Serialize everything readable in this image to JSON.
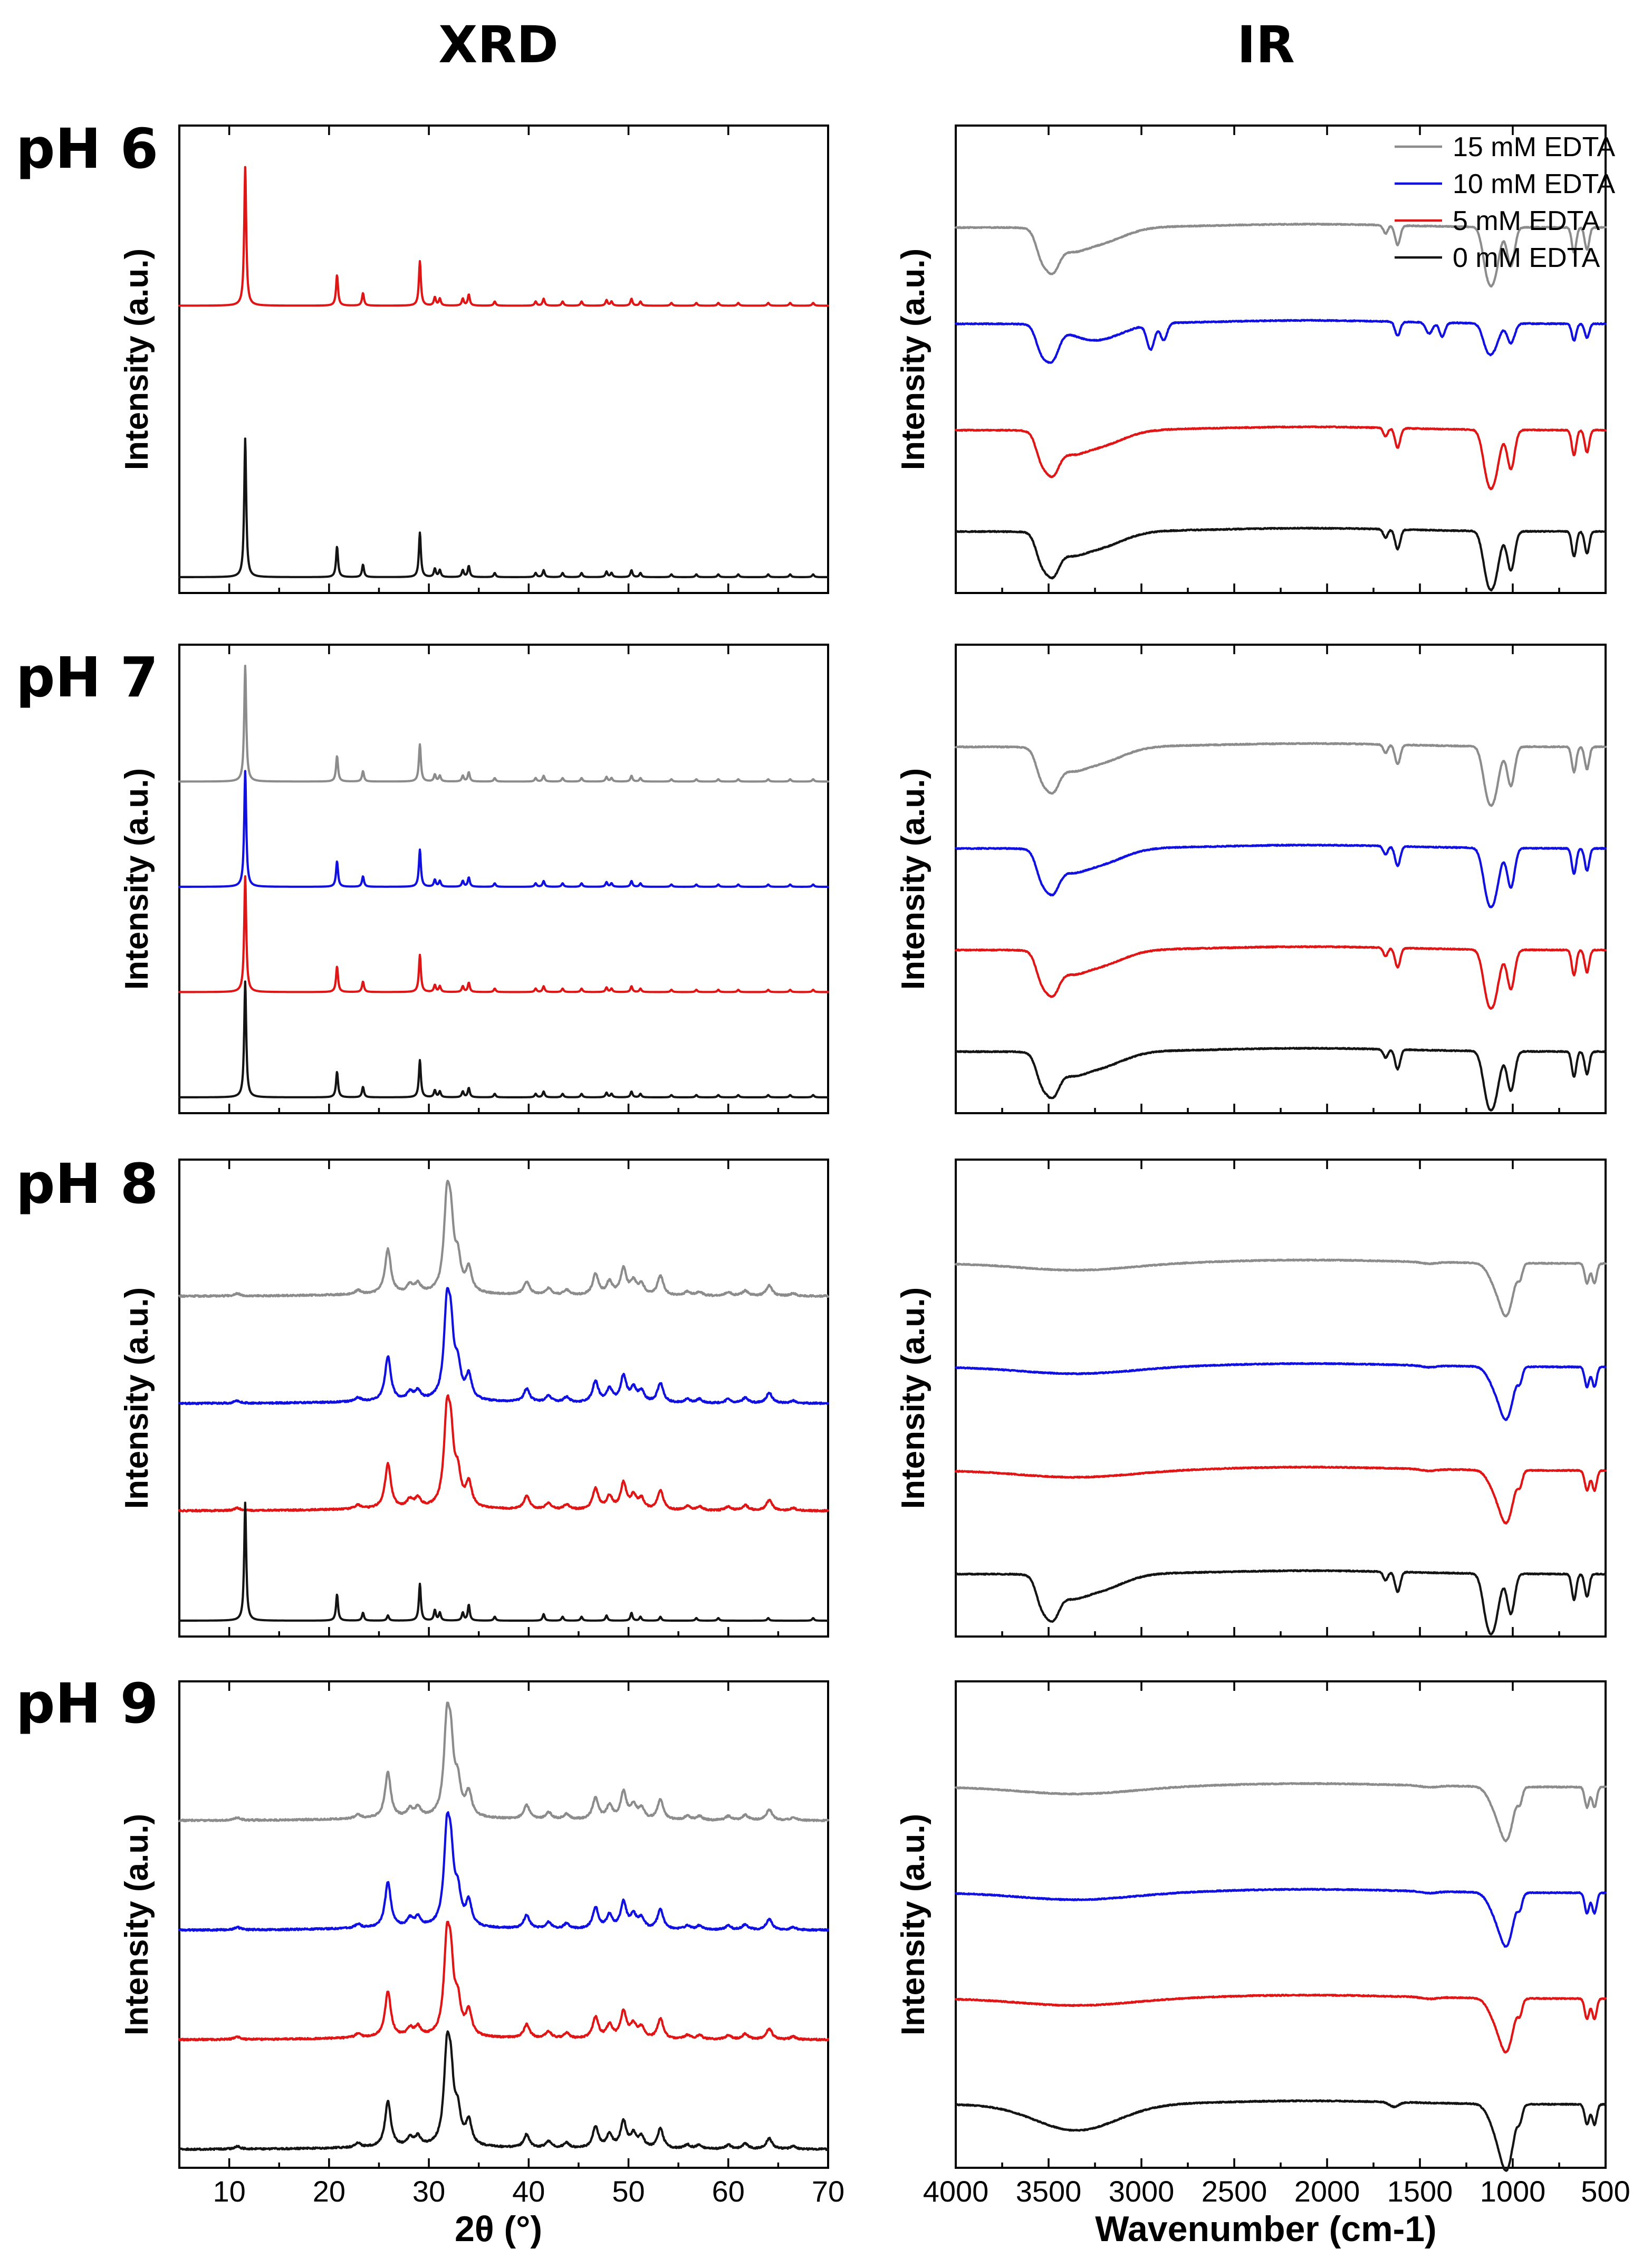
{
  "figure": {
    "xrd_title": "XRD",
    "ir_title": "IR",
    "y_label": "Intensity (a.u.)"
  },
  "legend": [
    {
      "name": "15 mM EDTA",
      "color": "#8c8c8c"
    },
    {
      "name": "10 mM EDTA",
      "color": "#1010e0"
    },
    {
      "name": "5 mM EDTA",
      "color": "#e01616"
    },
    {
      "name": "0 mM EDTA",
      "color": "#141414"
    }
  ],
  "chart_data": [
    {
      "id": "xrd-ph6",
      "type": "line",
      "panel": "XRD",
      "row_label": "pH 6",
      "xlabel": "2θ (°)",
      "ylabel": "Intensity (a.u.)",
      "xlim": [
        5,
        70
      ],
      "xticks": [
        10,
        20,
        30,
        40,
        50,
        60,
        70
      ],
      "show_tick_labels": false,
      "series": [
        {
          "name": "5 mM EDTA",
          "color": "#e01616",
          "offset": 1.9,
          "pattern": "calcite_xrd"
        },
        {
          "name": "0 mM EDTA",
          "color": "#141414",
          "offset": 0.0,
          "pattern": "calcite_xrd"
        }
      ]
    },
    {
      "id": "ir-ph6",
      "type": "line",
      "panel": "IR",
      "row_label": "pH 6",
      "xlabel": "Wavenumber (cm-1)",
      "ylabel": "Intensity (a.u.)",
      "xlim": [
        4000,
        500
      ],
      "x_reversed": true,
      "xticks": [
        4000,
        3500,
        3000,
        2500,
        2000,
        1500,
        1000,
        500
      ],
      "show_tick_labels": false,
      "legend_position": "top-right",
      "series": [
        {
          "name": "15 mM EDTA",
          "color": "#8c8c8c",
          "offset": 3.0,
          "pattern": "gypsum_ir"
        },
        {
          "name": "10 mM EDTA",
          "color": "#1010e0",
          "offset": 2.05,
          "pattern": "gypsum_ir_organic"
        },
        {
          "name": "5 mM EDTA",
          "color": "#e01616",
          "offset": 1.0,
          "pattern": "gypsum_ir"
        },
        {
          "name": "0 mM EDTA",
          "color": "#141414",
          "offset": 0.0,
          "pattern": "gypsum_ir"
        }
      ]
    },
    {
      "id": "xrd-ph7",
      "type": "line",
      "panel": "XRD",
      "row_label": "pH 7",
      "xlabel": "2θ (°)",
      "ylabel": "Intensity (a.u.)",
      "xlim": [
        5,
        70
      ],
      "xticks": [
        10,
        20,
        30,
        40,
        50,
        60,
        70
      ],
      "show_tick_labels": false,
      "series": [
        {
          "name": "15 mM EDTA",
          "color": "#8c8c8c",
          "offset": 3.0,
          "pattern": "calcite_xrd"
        },
        {
          "name": "10 mM EDTA",
          "color": "#1010e0",
          "offset": 2.0,
          "pattern": "calcite_xrd"
        },
        {
          "name": "5 mM EDTA",
          "color": "#e01616",
          "offset": 1.0,
          "pattern": "calcite_xrd"
        },
        {
          "name": "0 mM EDTA",
          "color": "#141414",
          "offset": 0.0,
          "pattern": "calcite_xrd"
        }
      ]
    },
    {
      "id": "ir-ph7",
      "type": "line",
      "panel": "IR",
      "row_label": "pH 7",
      "xlabel": "Wavenumber (cm-1)",
      "ylabel": "Intensity (a.u.)",
      "xlim": [
        4000,
        500
      ],
      "x_reversed": true,
      "xticks": [
        4000,
        3500,
        3000,
        2500,
        2000,
        1500,
        1000,
        500
      ],
      "show_tick_labels": false,
      "series": [
        {
          "name": "15 mM EDTA",
          "color": "#8c8c8c",
          "offset": 3.0,
          "pattern": "gypsum_ir"
        },
        {
          "name": "10 mM EDTA",
          "color": "#1010e0",
          "offset": 2.0,
          "pattern": "gypsum_ir"
        },
        {
          "name": "5 mM EDTA",
          "color": "#e01616",
          "offset": 1.0,
          "pattern": "gypsum_ir"
        },
        {
          "name": "0 mM EDTA",
          "color": "#141414",
          "offset": 0.0,
          "pattern": "gypsum_ir"
        }
      ]
    },
    {
      "id": "xrd-ph8",
      "type": "line",
      "panel": "XRD",
      "row_label": "pH 8",
      "xlabel": "2θ (°)",
      "ylabel": "Intensity (a.u.)",
      "xlim": [
        5,
        70
      ],
      "xticks": [
        10,
        20,
        30,
        40,
        50,
        60,
        70
      ],
      "show_tick_labels": false,
      "series": [
        {
          "name": "15 mM EDTA",
          "color": "#8c8c8c",
          "offset": 3.0,
          "pattern": "apatite_xrd"
        },
        {
          "name": "10 mM EDTA",
          "color": "#1010e0",
          "offset": 2.0,
          "pattern": "apatite_xrd"
        },
        {
          "name": "5 mM EDTA",
          "color": "#e01616",
          "offset": 1.0,
          "pattern": "apatite_xrd"
        },
        {
          "name": "0 mM EDTA",
          "color": "#141414",
          "offset": 0.0,
          "pattern": "calcite_xrd_weak"
        }
      ]
    },
    {
      "id": "ir-ph8",
      "type": "line",
      "panel": "IR",
      "row_label": "pH 8",
      "xlabel": "Wavenumber (cm-1)",
      "ylabel": "Intensity (a.u.)",
      "xlim": [
        4000,
        500
      ],
      "x_reversed": true,
      "xticks": [
        4000,
        3500,
        3000,
        2500,
        2000,
        1500,
        1000,
        500
      ],
      "show_tick_labels": false,
      "series": [
        {
          "name": "15 mM EDTA",
          "color": "#8c8c8c",
          "offset": 3.0,
          "pattern": "apatite_ir"
        },
        {
          "name": "10 mM EDTA",
          "color": "#1010e0",
          "offset": 2.0,
          "pattern": "apatite_ir"
        },
        {
          "name": "5 mM EDTA",
          "color": "#e01616",
          "offset": 1.0,
          "pattern": "apatite_ir"
        },
        {
          "name": "0 mM EDTA",
          "color": "#141414",
          "offset": 0.0,
          "pattern": "gypsum_ir"
        }
      ]
    },
    {
      "id": "xrd-ph9",
      "type": "line",
      "panel": "XRD",
      "row_label": "pH 9",
      "xlabel": "2θ (°)",
      "ylabel": "Intensity (a.u.)",
      "xlim": [
        5,
        70
      ],
      "xticks": [
        10,
        20,
        30,
        40,
        50,
        60,
        70
      ],
      "show_tick_labels": true,
      "series": [
        {
          "name": "15 mM EDTA",
          "color": "#8c8c8c",
          "offset": 3.0,
          "pattern": "apatite_xrd"
        },
        {
          "name": "10 mM EDTA",
          "color": "#1010e0",
          "offset": 2.0,
          "pattern": "apatite_xrd"
        },
        {
          "name": "5 mM EDTA",
          "color": "#e01616",
          "offset": 1.0,
          "pattern": "apatite_xrd"
        },
        {
          "name": "0 mM EDTA",
          "color": "#141414",
          "offset": 0.0,
          "pattern": "apatite_xrd"
        }
      ]
    },
    {
      "id": "ir-ph9",
      "type": "line",
      "panel": "IR",
      "row_label": "pH 9",
      "xlabel": "Wavenumber (cm-1)",
      "ylabel": "Intensity (a.u.)",
      "xlim": [
        4000,
        500
      ],
      "x_reversed": true,
      "xticks": [
        4000,
        3500,
        3000,
        2500,
        2000,
        1500,
        1000,
        500
      ],
      "show_tick_labels": true,
      "series": [
        {
          "name": "15 mM EDTA",
          "color": "#8c8c8c",
          "offset": 3.0,
          "pattern": "apatite_ir"
        },
        {
          "name": "10 mM EDTA",
          "color": "#1010e0",
          "offset": 2.0,
          "pattern": "apatite_ir"
        },
        {
          "name": "5 mM EDTA",
          "color": "#e01616",
          "offset": 1.0,
          "pattern": "apatite_ir"
        },
        {
          "name": "0 mM EDTA",
          "color": "#141414",
          "offset": 0.0,
          "pattern": "apatite_ir_broad"
        }
      ]
    }
  ],
  "patterns": {
    "calcite_xrd": {
      "baseline": 0,
      "width": 0.12,
      "peaks": [
        [
          11.6,
          1.0
        ],
        [
          20.8,
          0.22
        ],
        [
          23.4,
          0.09
        ],
        [
          29.1,
          0.32
        ],
        [
          30.6,
          0.06
        ],
        [
          31.1,
          0.05
        ],
        [
          33.4,
          0.05
        ],
        [
          34.0,
          0.08
        ],
        [
          36.6,
          0.03
        ],
        [
          40.7,
          0.03
        ],
        [
          41.5,
          0.05
        ],
        [
          43.4,
          0.03
        ],
        [
          45.3,
          0.03
        ],
        [
          47.8,
          0.04
        ],
        [
          48.3,
          0.03
        ],
        [
          50.3,
          0.05
        ],
        [
          51.2,
          0.03
        ],
        [
          54.3,
          0.02
        ],
        [
          56.8,
          0.02
        ],
        [
          59.0,
          0.02
        ],
        [
          61.0,
          0.02
        ],
        [
          64.0,
          0.02
        ],
        [
          66.2,
          0.02
        ],
        [
          68.5,
          0.02
        ]
      ]
    },
    "calcite_xrd_weak": {
      "baseline": 0,
      "width": 0.12,
      "peaks": [
        [
          11.6,
          0.9
        ],
        [
          20.8,
          0.2
        ],
        [
          23.4,
          0.06
        ],
        [
          25.9,
          0.04
        ],
        [
          29.1,
          0.28
        ],
        [
          30.6,
          0.08
        ],
        [
          31.1,
          0.06
        ],
        [
          33.4,
          0.06
        ],
        [
          34.0,
          0.12
        ],
        [
          36.6,
          0.03
        ],
        [
          41.5,
          0.05
        ],
        [
          43.4,
          0.03
        ],
        [
          45.3,
          0.03
        ],
        [
          47.8,
          0.04
        ],
        [
          50.3,
          0.06
        ],
        [
          51.2,
          0.03
        ],
        [
          53.2,
          0.03
        ],
        [
          56.8,
          0.02
        ],
        [
          59.0,
          0.02
        ],
        [
          64.0,
          0.02
        ],
        [
          68.5,
          0.02
        ]
      ]
    },
    "apatite_xrd": {
      "baseline": 0.02,
      "width": 0.35,
      "noise": 0.012,
      "peaks": [
        [
          10.8,
          0.02
        ],
        [
          22.9,
          0.03
        ],
        [
          25.9,
          0.34
        ],
        [
          28.1,
          0.06
        ],
        [
          28.9,
          0.07
        ],
        [
          31.8,
          0.62
        ],
        [
          32.2,
          0.45
        ],
        [
          32.9,
          0.22
        ],
        [
          34.0,
          0.18
        ],
        [
          39.8,
          0.1
        ],
        [
          42.0,
          0.05
        ],
        [
          43.8,
          0.04
        ],
        [
          46.7,
          0.16
        ],
        [
          48.1,
          0.1
        ],
        [
          49.5,
          0.2
        ],
        [
          50.5,
          0.1
        ],
        [
          51.3,
          0.08
        ],
        [
          53.2,
          0.15
        ],
        [
          55.9,
          0.03
        ],
        [
          57.1,
          0.03
        ],
        [
          60.0,
          0.03
        ],
        [
          61.7,
          0.04
        ],
        [
          64.1,
          0.08
        ],
        [
          66.5,
          0.02
        ]
      ]
    },
    "gypsum_ir": {
      "baseline_slope": 0,
      "dips": [
        [
          3540,
          0.4,
          30
        ],
        [
          3480,
          0.55,
          35
        ],
        [
          3400,
          0.25,
          80
        ],
        [
          3250,
          0.3,
          140
        ],
        [
          1685,
          0.15,
          12
        ],
        [
          1620,
          0.35,
          14
        ],
        [
          1140,
          0.6,
          25
        ],
        [
          1100,
          0.8,
          28
        ],
        [
          1010,
          0.7,
          20
        ],
        [
          670,
          0.45,
          12
        ],
        [
          600,
          0.4,
          12
        ]
      ]
    },
    "gypsum_ir_organic": {
      "baseline_slope": 0,
      "dips": [
        [
          3540,
          0.4,
          30
        ],
        [
          3480,
          0.55,
          35
        ],
        [
          3250,
          0.3,
          140
        ],
        [
          2950,
          0.45,
          20
        ],
        [
          2880,
          0.3,
          18
        ],
        [
          1620,
          0.25,
          14
        ],
        [
          1450,
          0.2,
          18
        ],
        [
          1380,
          0.25,
          15
        ],
        [
          1140,
          0.35,
          25
        ],
        [
          1100,
          0.4,
          28
        ],
        [
          1010,
          0.35,
          20
        ],
        [
          670,
          0.3,
          12
        ],
        [
          600,
          0.25,
          12
        ]
      ]
    },
    "apatite_ir": {
      "baseline_slope": 0,
      "dips": [
        [
          3350,
          0.12,
          300
        ],
        [
          1450,
          0.03,
          40
        ],
        [
          1090,
          0.35,
          40
        ],
        [
          1030,
          0.8,
          35
        ],
        [
          960,
          0.2,
          12
        ],
        [
          600,
          0.35,
          12
        ],
        [
          560,
          0.35,
          12
        ]
      ]
    },
    "apatite_ir_broad": {
      "baseline_slope": 0,
      "dips": [
        [
          3350,
          0.45,
          220
        ],
        [
          1640,
          0.08,
          25
        ],
        [
          1090,
          0.4,
          40
        ],
        [
          1030,
          1.0,
          35
        ],
        [
          960,
          0.2,
          12
        ],
        [
          600,
          0.35,
          12
        ],
        [
          560,
          0.35,
          12
        ]
      ]
    }
  }
}
